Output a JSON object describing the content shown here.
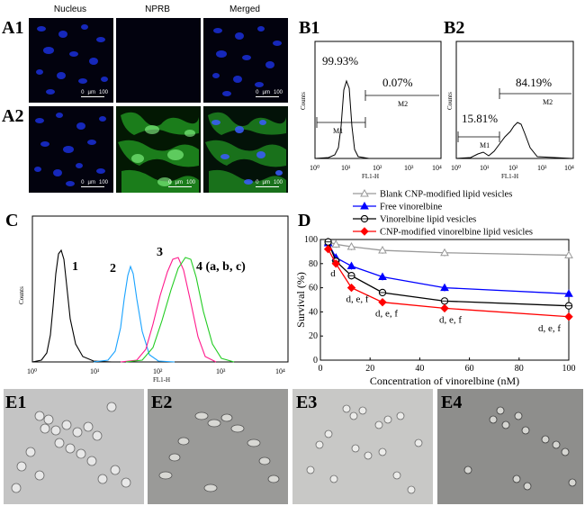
{
  "panels": {
    "A1": "A1",
    "A2": "A2",
    "B1": "B1",
    "B2": "B2",
    "C": "C",
    "D": "D",
    "E1": "E1",
    "E2": "E2",
    "E3": "E3",
    "E4": "E4"
  },
  "panel_a": {
    "col_headers": [
      "Nucleus",
      "NPRB",
      "Merged"
    ],
    "scale_zero": "0",
    "scale_unit": "µm",
    "scale_value": "100"
  },
  "panel_b1": {
    "pct_m1": "99.93%",
    "pct_m2": "0.07%",
    "gate1": "M1",
    "gate2": "M2",
    "ylabel": "Counts",
    "xlabel": "FL1-H",
    "ticks": [
      "10⁰",
      "10¹",
      "10²",
      "10³",
      "10⁴"
    ]
  },
  "panel_b2": {
    "pct_m1": "15.81%",
    "pct_m2": "84.19%",
    "gate1": "M1",
    "gate2": "M2",
    "ylabel": "Counts",
    "xlabel": "FL1-H",
    "ticks": [
      "10⁰",
      "10¹",
      "10²",
      "10³",
      "10⁴"
    ]
  },
  "panel_c": {
    "ylabel": "Counts",
    "xlabel": "FL1-H",
    "ticks": [
      "10⁰",
      "10¹",
      "10²",
      "10³",
      "10⁴"
    ],
    "curve_labels": [
      "1",
      "2",
      "3",
      "4 (a, b, c)"
    ],
    "colors": [
      "#000000",
      "#1aa3ff",
      "#ff1a8c",
      "#22cc22"
    ]
  },
  "chart_data": {
    "type": "line",
    "xlabel": "Concentration of vinorelbine (nM)",
    "ylabel": "Survival (%)",
    "xlim": [
      0,
      100
    ],
    "ylim": [
      0,
      100
    ],
    "xticks": [
      0,
      20,
      40,
      60,
      80,
      100
    ],
    "yticks": [
      0,
      20,
      40,
      60,
      80,
      100
    ],
    "series": [
      {
        "name": "Blank CNP-modified lipid vesicles",
        "color": "#999999",
        "marker": "triangle-open",
        "x": [
          3.125,
          6.25,
          12.5,
          25,
          50,
          100
        ],
        "y": [
          98,
          96,
          94,
          91,
          89,
          87
        ]
      },
      {
        "name": "Free vinorelbine",
        "color": "#0000ff",
        "marker": "triangle",
        "x": [
          3.125,
          6.25,
          12.5,
          25,
          50,
          100
        ],
        "y": [
          97,
          85,
          78,
          69,
          60,
          55
        ]
      },
      {
        "name": "Vinorelbine lipid vesicles",
        "color": "#000000",
        "marker": "circle-cross",
        "x": [
          3.125,
          6.25,
          12.5,
          25,
          50,
          100
        ],
        "y": [
          98,
          82,
          70,
          56,
          49,
          45
        ]
      },
      {
        "name": "CNP-modified vinorelbine lipid vesicles",
        "color": "#ff0000",
        "marker": "diamond",
        "x": [
          3.125,
          6.25,
          12.5,
          25,
          50,
          100
        ],
        "y": [
          92,
          80,
          60,
          48,
          43,
          36
        ]
      }
    ],
    "annotations": [
      "d",
      "d, e, f",
      "d, e, f",
      "d, e, f",
      "d, e, f"
    ]
  }
}
